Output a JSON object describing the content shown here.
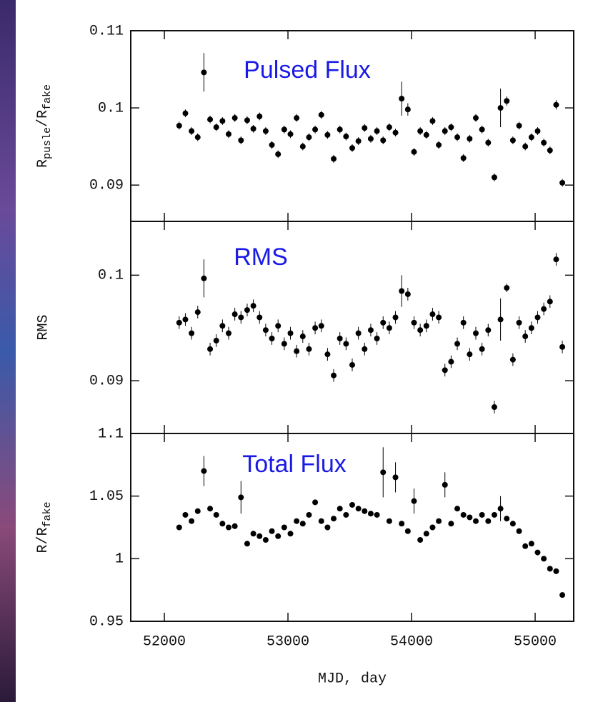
{
  "chart_data": [
    {
      "type": "scatter",
      "annotation": "Pulsed Flux",
      "ylabel": [
        "R",
        "pusle",
        "/R",
        "fake"
      ],
      "xlim": [
        51728,
        55312
      ],
      "ylim": [
        0.0853,
        0.11
      ],
      "yticks": [
        0.09,
        0.1,
        0.11
      ],
      "x": [
        52120,
        52170,
        52220,
        52270,
        52320,
        52370,
        52420,
        52470,
        52520,
        52570,
        52620,
        52670,
        52720,
        52770,
        52820,
        52870,
        52920,
        52970,
        53020,
        53070,
        53120,
        53170,
        53220,
        53270,
        53320,
        53370,
        53420,
        53470,
        53520,
        53570,
        53620,
        53670,
        53720,
        53770,
        53820,
        53870,
        53920,
        53970,
        54020,
        54070,
        54120,
        54170,
        54220,
        54270,
        54320,
        54370,
        54420,
        54470,
        54520,
        54570,
        54620,
        54670,
        54720,
        54770,
        54820,
        54870,
        54920,
        54970,
        55020,
        55070,
        55120,
        55170,
        55220
      ],
      "series": [
        {
          "color": "#000000",
          "values": [
            0.0977,
            0.0993,
            0.097,
            0.0962,
            0.1046,
            0.0985,
            0.0975,
            0.0983,
            0.0966,
            0.0987,
            0.0958,
            0.0984,
            0.0973,
            0.0989,
            0.097,
            0.0952,
            0.094,
            0.0972,
            0.0966,
            0.0987,
            0.095,
            0.0962,
            0.0972,
            0.0991,
            0.0965,
            0.0934,
            0.0972,
            0.0963,
            0.0948,
            0.0957,
            0.0974,
            0.096,
            0.097,
            0.0958,
            0.0975,
            0.0968,
            0.1012,
            0.0998,
            0.0943,
            0.097,
            0.0965,
            0.0983,
            0.0952,
            0.097,
            0.0975,
            0.0962,
            0.0935,
            0.096,
            0.0987,
            0.0972,
            0.0955,
            0.091,
            0.1,
            0.1009,
            0.0958,
            0.0977,
            0.095,
            0.0962,
            0.097,
            0.0955,
            0.0945,
            0.1004,
            0.0903
          ],
          "yerr": [
            0.0005,
            0.0005,
            0.0005,
            0.0005,
            0.0025,
            0.0005,
            0.0005,
            0.0005,
            0.0005,
            0.0005,
            0.0005,
            0.0005,
            0.0005,
            0.0005,
            0.0005,
            0.0005,
            0.0005,
            0.0005,
            0.0005,
            0.0005,
            0.0005,
            0.0005,
            0.0005,
            0.0005,
            0.0005,
            0.0005,
            0.0005,
            0.0005,
            0.0005,
            0.0005,
            0.0005,
            0.0005,
            0.0005,
            0.0005,
            0.0005,
            0.0005,
            0.0022,
            0.0008,
            0.0005,
            0.0005,
            0.0005,
            0.0005,
            0.0005,
            0.0005,
            0.0005,
            0.0005,
            0.0005,
            0.0005,
            0.0005,
            0.0005,
            0.0005,
            0.0005,
            0.0025,
            0.0006,
            0.0005,
            0.0005,
            0.0005,
            0.0005,
            0.0005,
            0.0005,
            0.0005,
            0.0006,
            0.0005
          ]
        }
      ]
    },
    {
      "type": "scatter",
      "annotation": "RMS",
      "ylabel": "RMS",
      "xlim": [
        51728,
        55312
      ],
      "ylim": [
        0.085,
        0.1051
      ],
      "yticks": [
        0.09,
        0.1
      ],
      "x": [
        52120,
        52170,
        52220,
        52270,
        52320,
        52370,
        52420,
        52470,
        52520,
        52570,
        52620,
        52670,
        52720,
        52770,
        52820,
        52870,
        52920,
        52970,
        53020,
        53070,
        53120,
        53170,
        53220,
        53270,
        53320,
        53370,
        53420,
        53470,
        53520,
        53570,
        53620,
        53670,
        53720,
        53770,
        53820,
        53870,
        53920,
        53970,
        54020,
        54070,
        54120,
        54170,
        54220,
        54270,
        54320,
        54370,
        54420,
        54470,
        54520,
        54570,
        54620,
        54670,
        54720,
        54770,
        54820,
        54870,
        54920,
        54970,
        55020,
        55070,
        55120,
        55170,
        55220
      ],
      "series": [
        {
          "color": "#000000",
          "values": [
            0.0955,
            0.0958,
            0.0945,
            0.0965,
            0.0997,
            0.093,
            0.0938,
            0.0952,
            0.0945,
            0.0963,
            0.096,
            0.0967,
            0.0971,
            0.096,
            0.0948,
            0.094,
            0.0952,
            0.0935,
            0.0945,
            0.0928,
            0.0942,
            0.093,
            0.095,
            0.0952,
            0.0925,
            0.0905,
            0.094,
            0.0935,
            0.0915,
            0.0945,
            0.093,
            0.0948,
            0.094,
            0.0955,
            0.095,
            0.096,
            0.0985,
            0.0982,
            0.0955,
            0.0948,
            0.0952,
            0.0963,
            0.096,
            0.091,
            0.0918,
            0.0935,
            0.0955,
            0.0925,
            0.0945,
            0.093,
            0.0948,
            0.0875,
            0.0958,
            0.0988,
            0.092,
            0.0955,
            0.0942,
            0.095,
            0.096,
            0.0968,
            0.0975,
            0.1015,
            0.0932
          ],
          "yerr": [
            0.0006,
            0.0006,
            0.0006,
            0.0006,
            0.0018,
            0.0006,
            0.0006,
            0.0006,
            0.0006,
            0.0006,
            0.0006,
            0.0006,
            0.0006,
            0.0006,
            0.0006,
            0.0006,
            0.0006,
            0.0006,
            0.0006,
            0.0006,
            0.0006,
            0.0006,
            0.0006,
            0.0006,
            0.0006,
            0.0006,
            0.0006,
            0.0006,
            0.0006,
            0.0006,
            0.0006,
            0.0006,
            0.0006,
            0.0006,
            0.0006,
            0.0006,
            0.0015,
            0.0006,
            0.0006,
            0.0006,
            0.0006,
            0.0006,
            0.0006,
            0.0006,
            0.0006,
            0.0006,
            0.0006,
            0.0006,
            0.0006,
            0.0006,
            0.0006,
            0.0006,
            0.002,
            0.0004,
            0.0006,
            0.0006,
            0.0006,
            0.0006,
            0.0006,
            0.0006,
            0.0006,
            0.0006,
            0.0006
          ]
        }
      ]
    },
    {
      "type": "scatter",
      "annotation": "Total Flux",
      "ylabel": [
        "R/R",
        "fake"
      ],
      "xlabel": "MJD, day",
      "xlim": [
        51728,
        55312
      ],
      "ylim": [
        0.95,
        1.1
      ],
      "yticks": [
        0.95,
        1,
        1.05,
        1.1
      ],
      "xticks": [
        52000,
        53000,
        54000,
        55000
      ],
      "x": [
        52120,
        52170,
        52220,
        52270,
        52320,
        52370,
        52420,
        52470,
        52520,
        52570,
        52620,
        52670,
        52720,
        52770,
        52820,
        52870,
        52920,
        52970,
        53020,
        53070,
        53120,
        53170,
        53220,
        53270,
        53320,
        53370,
        53420,
        53470,
        53520,
        53570,
        53620,
        53670,
        53720,
        53770,
        53820,
        53870,
        53920,
        53970,
        54020,
        54070,
        54120,
        54170,
        54220,
        54270,
        54320,
        54370,
        54420,
        54470,
        54520,
        54570,
        54620,
        54670,
        54720,
        54770,
        54820,
        54870,
        54920,
        54970,
        55020,
        55070,
        55120,
        55170,
        55220
      ],
      "series": [
        {
          "color": "#000000",
          "values": [
            1.025,
            1.035,
            1.03,
            1.038,
            1.07,
            1.04,
            1.035,
            1.028,
            1.025,
            1.026,
            1.049,
            1.012,
            1.02,
            1.018,
            1.015,
            1.022,
            1.018,
            1.025,
            1.02,
            1.03,
            1.028,
            1.035,
            1.045,
            1.03,
            1.025,
            1.032,
            1.04,
            1.035,
            1.043,
            1.04,
            1.038,
            1.036,
            1.035,
            1.069,
            1.03,
            1.065,
            1.028,
            1.022,
            1.046,
            1.015,
            1.02,
            1.025,
            1.03,
            1.059,
            1.028,
            1.04,
            1.035,
            1.033,
            1.03,
            1.035,
            1.03,
            1.035,
            1.04,
            1.032,
            1.028,
            1.022,
            1.01,
            1.012,
            1.005,
            1,
            0.992,
            0.99,
            0.971
          ],
          "yerr": [
            0.002,
            0.002,
            0.002,
            0.002,
            0.012,
            0.002,
            0.002,
            0.002,
            0.002,
            0.002,
            0.013,
            0.002,
            0.002,
            0.002,
            0.002,
            0.002,
            0.002,
            0.002,
            0.002,
            0.002,
            0.002,
            0.002,
            0.002,
            0.002,
            0.002,
            0.002,
            0.002,
            0.002,
            0.002,
            0.002,
            0.002,
            0.002,
            0.002,
            0.02,
            0.002,
            0.012,
            0.002,
            0.002,
            0.01,
            0.002,
            0.002,
            0.002,
            0.002,
            0.01,
            0.002,
            0.002,
            0.002,
            0.002,
            0.002,
            0.002,
            0.002,
            0.002,
            0.01,
            0.002,
            0.002,
            0.002,
            0.002,
            0.002,
            0.002,
            0.002,
            0.002,
            0.002,
            0.002
          ]
        }
      ]
    }
  ]
}
